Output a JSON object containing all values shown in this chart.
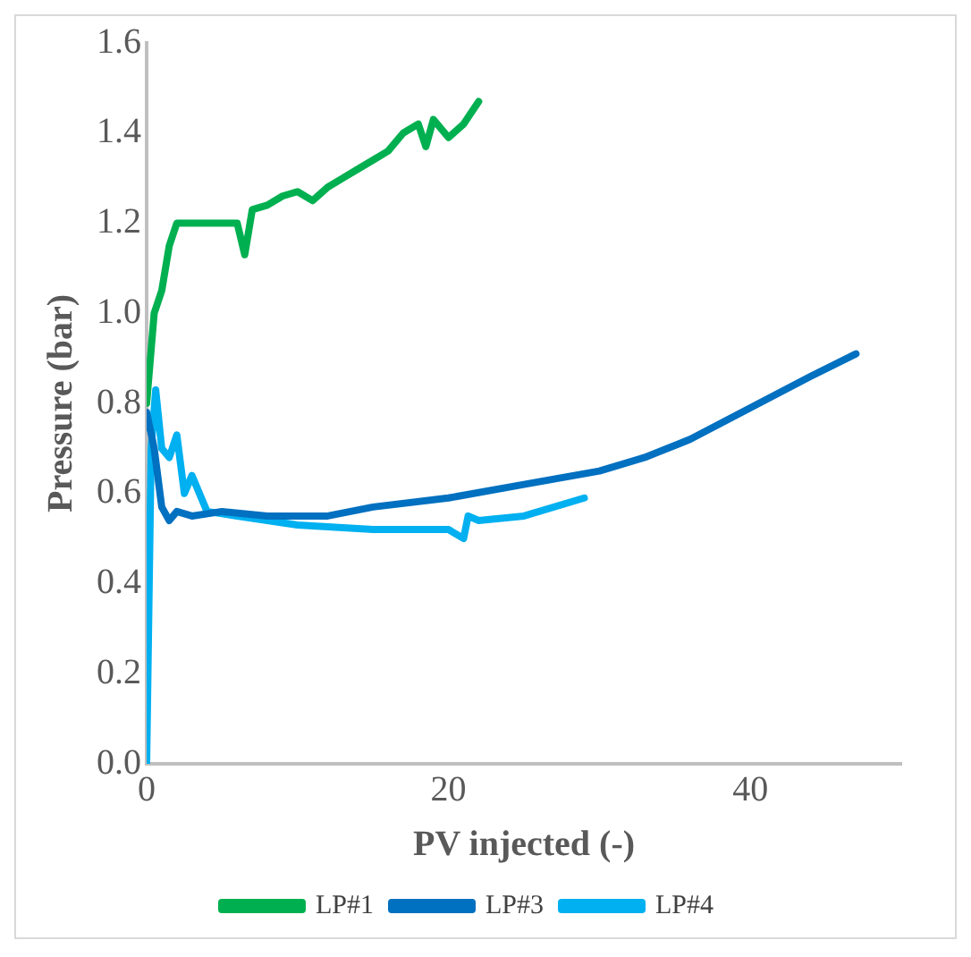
{
  "chart_data": {
    "type": "line",
    "xlabel": "PV injected (-)",
    "ylabel": "Pressure (bar)",
    "xlim": [
      0,
      50
    ],
    "xticks": [
      0,
      20,
      40
    ],
    "ylim": [
      0,
      1.6
    ],
    "yticks": [
      {
        "value": 0,
        "label": "0.0"
      },
      {
        "value": 0.2,
        "label": "0.2"
      },
      {
        "value": 0.4,
        "label": "0.4"
      },
      {
        "value": 0.6,
        "label": "0.6"
      },
      {
        "value": 0.8,
        "label": "0.8"
      },
      {
        "value": 1,
        "label": "1.0"
      },
      {
        "value": 1.2,
        "label": "1.2"
      },
      {
        "value": 1.4,
        "label": "1.4"
      },
      {
        "value": 1.6,
        "label": "1.6"
      }
    ],
    "grid": false,
    "legend": "bottom",
    "marker": "none",
    "line_style": "solid",
    "series": [
      {
        "name": "LP#1",
        "color": "#00b050",
        "x": [
          0,
          0.5,
          1,
          1.5,
          2,
          3,
          4,
          6,
          6.5,
          7,
          8,
          9,
          10,
          11,
          12,
          13,
          14,
          15,
          16,
          17,
          18,
          18.5,
          19,
          20,
          21,
          22
        ],
        "values": [
          0.8,
          1.0,
          1.05,
          1.15,
          1.2,
          1.2,
          1.2,
          1.2,
          1.13,
          1.23,
          1.24,
          1.26,
          1.27,
          1.25,
          1.28,
          1.3,
          1.32,
          1.34,
          1.36,
          1.4,
          1.42,
          1.37,
          1.43,
          1.39,
          1.42,
          1.47
        ]
      },
      {
        "name": "LP#3",
        "color": "#0070c0",
        "x": [
          0,
          0.5,
          1,
          1.5,
          2,
          3,
          5,
          8,
          12,
          15,
          20,
          25,
          30,
          33,
          36,
          40,
          44,
          47
        ],
        "values": [
          0.78,
          0.7,
          0.57,
          0.54,
          0.56,
          0.55,
          0.56,
          0.55,
          0.55,
          0.57,
          0.59,
          0.62,
          0.65,
          0.68,
          0.72,
          0.79,
          0.86,
          0.91
        ]
      },
      {
        "name": "LP#4",
        "color": "#00b0f0",
        "x": [
          0,
          0.3,
          0.6,
          1,
          1.5,
          2,
          2.5,
          3,
          4,
          6,
          10,
          15,
          20,
          21,
          21.3,
          22,
          25,
          29
        ],
        "values": [
          0,
          0.7,
          0.83,
          0.7,
          0.68,
          0.73,
          0.6,
          0.64,
          0.56,
          0.55,
          0.53,
          0.52,
          0.52,
          0.5,
          0.55,
          0.54,
          0.55,
          0.59
        ]
      }
    ]
  }
}
